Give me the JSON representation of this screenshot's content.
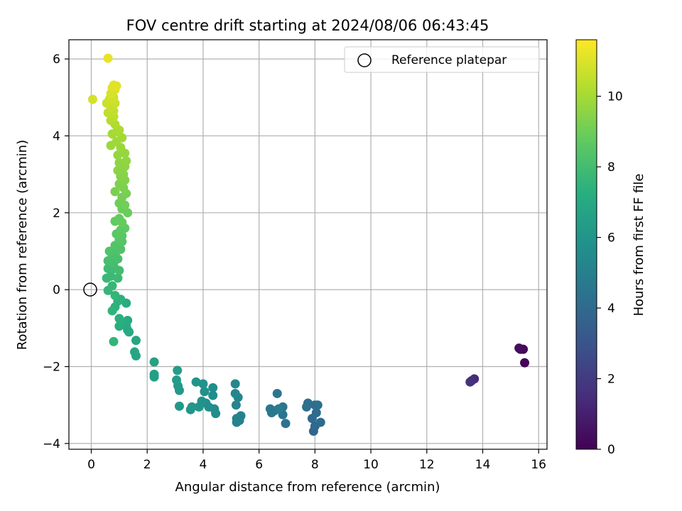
{
  "chart_data": {
    "type": "scatter",
    "title": "FOV centre drift starting at 2024/08/06 06:43:45",
    "xlabel": "Angular distance from reference (arcmin)",
    "ylabel": "Rotation from reference (arcmin)",
    "xlim": [
      -0.8,
      16.3
    ],
    "ylim": [
      -4.15,
      6.5
    ],
    "x_ticks": [
      0,
      2,
      4,
      6,
      8,
      10,
      12,
      14,
      16
    ],
    "y_ticks": [
      -4,
      -2,
      0,
      2,
      4,
      6
    ],
    "grid": true,
    "legend": {
      "placement": "top-right",
      "entries": [
        {
          "label": "Reference platepar",
          "marker": "open-circle"
        }
      ]
    },
    "reference_point": {
      "x": 0,
      "y": 0
    },
    "colorbar": {
      "label": "Hours from first FF file",
      "colormap": "viridis",
      "range": [
        0,
        11.6
      ],
      "ticks": [
        0,
        2,
        4,
        6,
        8,
        10
      ]
    },
    "points": [
      [
        15.5,
        -1.9,
        0.05
      ],
      [
        15.45,
        -1.55,
        0.2
      ],
      [
        15.35,
        -1.55,
        0.3
      ],
      [
        15.3,
        -1.52,
        0.4
      ],
      [
        13.7,
        -2.32,
        1.4
      ],
      [
        13.6,
        -2.37,
        1.5
      ],
      [
        13.55,
        -2.4,
        1.6
      ],
      [
        7.95,
        -3.68,
        3.8
      ],
      [
        8.0,
        -3.55,
        3.9
      ],
      [
        8.2,
        -3.45,
        4.0
      ],
      [
        7.9,
        -3.35,
        4.05
      ],
      [
        8.05,
        -3.2,
        4.1
      ],
      [
        8.1,
        -3.0,
        4.15
      ],
      [
        8.0,
        -3.0,
        4.2
      ],
      [
        7.75,
        -2.95,
        4.25
      ],
      [
        7.7,
        -3.05,
        4.3
      ],
      [
        6.95,
        -3.48,
        4.4
      ],
      [
        6.85,
        -3.25,
        4.45
      ],
      [
        6.85,
        -3.05,
        4.5
      ],
      [
        6.65,
        -2.7,
        4.55
      ],
      [
        6.55,
        -3.15,
        4.6
      ],
      [
        6.45,
        -3.2,
        4.65
      ],
      [
        6.4,
        -3.1,
        4.7
      ],
      [
        6.7,
        -3.1,
        4.75
      ],
      [
        5.35,
        -3.28,
        5.0
      ],
      [
        5.3,
        -3.4,
        5.05
      ],
      [
        5.2,
        -3.45,
        5.1
      ],
      [
        5.2,
        -3.35,
        5.15
      ],
      [
        5.18,
        -3.0,
        5.2
      ],
      [
        5.25,
        -2.8,
        5.25
      ],
      [
        5.15,
        -2.7,
        5.3
      ],
      [
        5.15,
        -2.45,
        5.35
      ],
      [
        4.45,
        -3.22,
        5.5
      ],
      [
        4.4,
        -3.1,
        5.55
      ],
      [
        4.35,
        -2.75,
        5.6
      ],
      [
        4.35,
        -2.55,
        5.65
      ],
      [
        4.2,
        -3.05,
        5.7
      ],
      [
        4.1,
        -2.95,
        5.75
      ],
      [
        4.05,
        -2.65,
        5.8
      ],
      [
        4.0,
        -2.45,
        5.85
      ],
      [
        3.95,
        -2.9,
        5.9
      ],
      [
        3.85,
        -3.05,
        5.95
      ],
      [
        3.75,
        -2.4,
        6.0
      ],
      [
        3.55,
        -3.12,
        6.05
      ],
      [
        3.6,
        -3.05,
        6.1
      ],
      [
        3.15,
        -3.03,
        6.15
      ],
      [
        3.15,
        -2.62,
        6.2
      ],
      [
        3.1,
        -2.5,
        6.25
      ],
      [
        3.05,
        -2.35,
        6.3
      ],
      [
        3.08,
        -2.1,
        6.35
      ],
      [
        2.25,
        -2.27,
        6.45
      ],
      [
        2.25,
        -2.2,
        6.5
      ],
      [
        2.25,
        -1.88,
        6.6
      ],
      [
        1.6,
        -1.72,
        6.75
      ],
      [
        1.55,
        -1.62,
        6.8
      ],
      [
        1.6,
        -1.32,
        6.85
      ],
      [
        1.35,
        -1.1,
        6.95
      ],
      [
        1.3,
        -1.05,
        7.0
      ],
      [
        1.25,
        -0.95,
        7.05
      ],
      [
        1.3,
        -0.8,
        7.1
      ],
      [
        1.25,
        -0.35,
        7.15
      ],
      [
        1.1,
        -0.85,
        7.2
      ],
      [
        1.0,
        -0.95,
        7.25
      ],
      [
        1.0,
        -0.75,
        7.3
      ],
      [
        1.05,
        -0.25,
        7.35
      ],
      [
        0.95,
        -0.3,
        7.4
      ],
      [
        0.85,
        -0.45,
        7.45
      ],
      [
        0.75,
        -0.55,
        7.5
      ],
      [
        0.8,
        -1.35,
        7.55
      ],
      [
        0.85,
        -0.15,
        7.6
      ],
      [
        0.6,
        -0.02,
        7.65
      ],
      [
        0.75,
        0.1,
        7.7
      ],
      [
        0.55,
        0.3,
        7.75
      ],
      [
        0.7,
        0.35,
        7.8
      ],
      [
        0.95,
        0.3,
        7.85
      ],
      [
        0.6,
        0.55,
        7.9
      ],
      [
        0.85,
        0.55,
        7.95
      ],
      [
        1.0,
        0.5,
        8.0
      ],
      [
        0.8,
        0.7,
        8.05
      ],
      [
        0.6,
        0.75,
        8.1
      ],
      [
        0.95,
        0.8,
        8.15
      ],
      [
        0.75,
        0.9,
        8.2
      ],
      [
        0.9,
        1.0,
        8.25
      ],
      [
        0.65,
        1.0,
        8.3
      ],
      [
        1.05,
        1.05,
        8.35
      ],
      [
        0.85,
        1.15,
        8.4
      ],
      [
        1.1,
        1.25,
        8.45
      ],
      [
        1.0,
        1.3,
        8.5
      ],
      [
        1.1,
        1.4,
        8.55
      ],
      [
        0.9,
        1.45,
        8.6
      ],
      [
        1.05,
        1.55,
        8.65
      ],
      [
        1.2,
        1.6,
        8.7
      ],
      [
        0.85,
        1.78,
        8.75
      ],
      [
        1.0,
        1.85,
        8.8
      ],
      [
        1.1,
        1.75,
        8.85
      ],
      [
        1.3,
        2.0,
        8.9
      ],
      [
        1.1,
        2.1,
        8.95
      ],
      [
        1.0,
        2.25,
        9.0
      ],
      [
        1.2,
        2.2,
        9.05
      ],
      [
        1.1,
        2.4,
        9.1
      ],
      [
        1.25,
        2.5,
        9.15
      ],
      [
        0.85,
        2.55,
        9.2
      ],
      [
        1.15,
        2.65,
        9.25
      ],
      [
        1.0,
        2.75,
        9.3
      ],
      [
        1.2,
        2.85,
        9.35
      ],
      [
        1.05,
        2.95,
        9.4
      ],
      [
        1.15,
        3.0,
        9.45
      ],
      [
        0.95,
        3.1,
        9.5
      ],
      [
        1.2,
        3.2,
        9.55
      ],
      [
        1.0,
        3.3,
        9.6
      ],
      [
        1.25,
        3.35,
        9.65
      ],
      [
        0.95,
        3.5,
        9.7
      ],
      [
        1.2,
        3.55,
        9.75
      ],
      [
        1.05,
        3.7,
        9.8
      ],
      [
        0.7,
        3.75,
        9.85
      ],
      [
        0.9,
        3.85,
        9.9
      ],
      [
        1.1,
        3.95,
        9.95
      ],
      [
        0.75,
        4.05,
        10.0
      ],
      [
        0.9,
        4.1,
        10.05
      ],
      [
        1.0,
        4.15,
        10.1
      ],
      [
        0.85,
        4.3,
        10.2
      ],
      [
        0.7,
        4.4,
        10.3
      ],
      [
        0.8,
        4.5,
        10.4
      ],
      [
        0.6,
        4.6,
        10.5
      ],
      [
        0.8,
        4.65,
        10.55
      ],
      [
        0.7,
        4.75,
        10.6
      ],
      [
        0.85,
        4.85,
        10.65
      ],
      [
        0.55,
        4.85,
        10.7
      ],
      [
        0.65,
        4.95,
        10.75
      ],
      [
        0.8,
        5.0,
        10.8
      ],
      [
        0.05,
        4.95,
        10.85
      ],
      [
        0.7,
        5.1,
        10.9
      ],
      [
        0.85,
        5.2,
        10.95
      ],
      [
        0.75,
        5.25,
        11.0
      ],
      [
        0.9,
        5.3,
        11.05
      ],
      [
        0.8,
        5.32,
        11.1
      ],
      [
        0.6,
        6.02,
        11.2
      ]
    ]
  }
}
